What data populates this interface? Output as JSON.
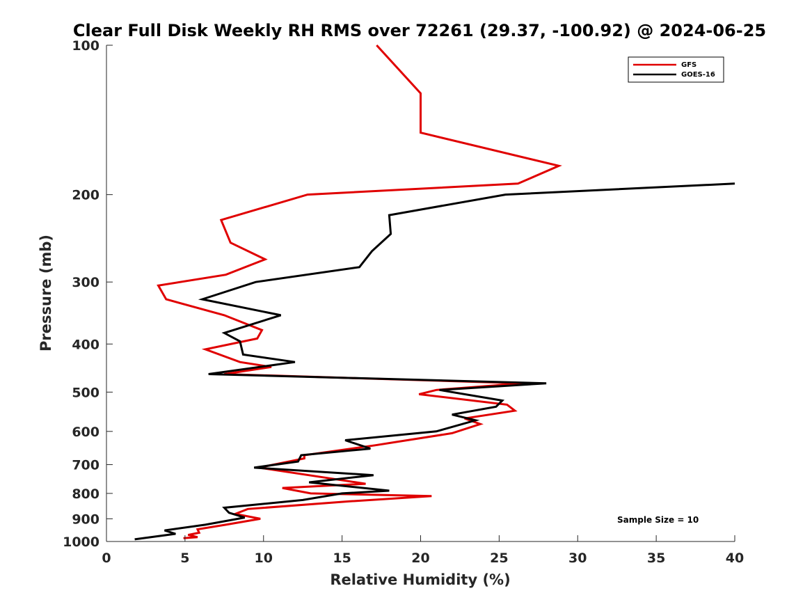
{
  "chart_data": {
    "type": "line",
    "title": "Clear Full Disk Weekly RH RMS over 72261 (29.37, -100.92) @ 2024-06-25",
    "xlabel": "Relative Humidity (%)",
    "ylabel": "Pressure (mb)",
    "xlim": [
      0,
      40
    ],
    "ylim": [
      100,
      1000
    ],
    "y_scale": "log",
    "y_reversed": true,
    "x_ticks": [
      0,
      5,
      10,
      15,
      20,
      25,
      30,
      35,
      40
    ],
    "y_ticks": [
      100,
      200,
      300,
      400,
      500,
      600,
      700,
      800,
      900,
      1000
    ],
    "grid": false,
    "legend_position": "top-right",
    "annotation": "Sample Size = 10",
    "series": [
      {
        "name": "GFS",
        "color": "#e00000",
        "points": [
          [
            17.2,
            100
          ],
          [
            20.0,
            125
          ],
          [
            20.0,
            150
          ],
          [
            28.8,
            175
          ],
          [
            26.2,
            190
          ],
          [
            12.8,
            200
          ],
          [
            7.3,
            225
          ],
          [
            7.9,
            250
          ],
          [
            10.1,
            270
          ],
          [
            7.6,
            290
          ],
          [
            3.3,
            305
          ],
          [
            3.8,
            325
          ],
          [
            7.5,
            350
          ],
          [
            9.9,
            375
          ],
          [
            9.6,
            390
          ],
          [
            6.3,
            410
          ],
          [
            8.5,
            435
          ],
          [
            10.5,
            445
          ],
          [
            7.5,
            460
          ],
          [
            26.5,
            480
          ],
          [
            21.0,
            495
          ],
          [
            19.9,
            505
          ],
          [
            25.5,
            530
          ],
          [
            26.0,
            545
          ],
          [
            22.8,
            565
          ],
          [
            23.8,
            580
          ],
          [
            22.0,
            605
          ],
          [
            17.1,
            640
          ],
          [
            12.6,
            670
          ],
          [
            12.6,
            680
          ],
          [
            9.7,
            710
          ],
          [
            13.5,
            740
          ],
          [
            16.5,
            765
          ],
          [
            11.2,
            780
          ],
          [
            13.0,
            800
          ],
          [
            20.7,
            810
          ],
          [
            15.5,
            830
          ],
          [
            9.0,
            860
          ],
          [
            8.2,
            880
          ],
          [
            9.8,
            900
          ],
          [
            7.6,
            925
          ],
          [
            5.8,
            945
          ],
          [
            5.9,
            960
          ],
          [
            5.2,
            970
          ],
          [
            5.8,
            980
          ],
          [
            4.9,
            985
          ]
        ]
      },
      {
        "name": "GOES-16",
        "color": "#000000",
        "points": [
          [
            40.0,
            190
          ],
          [
            25.4,
            200
          ],
          [
            18.0,
            220
          ],
          [
            18.1,
            240
          ],
          [
            16.9,
            260
          ],
          [
            16.1,
            280
          ],
          [
            9.5,
            300
          ],
          [
            6.1,
            325
          ],
          [
            11.1,
            350
          ],
          [
            7.5,
            380
          ],
          [
            8.5,
            395
          ],
          [
            8.7,
            420
          ],
          [
            12.0,
            435
          ],
          [
            6.5,
            460
          ],
          [
            28.0,
            480
          ],
          [
            21.2,
            495
          ],
          [
            25.2,
            520
          ],
          [
            24.8,
            535
          ],
          [
            22.0,
            555
          ],
          [
            23.5,
            570
          ],
          [
            21.0,
            600
          ],
          [
            15.2,
            625
          ],
          [
            16.8,
            650
          ],
          [
            12.4,
            670
          ],
          [
            12.2,
            690
          ],
          [
            9.4,
            710
          ],
          [
            17.0,
            735
          ],
          [
            12.9,
            760
          ],
          [
            18.0,
            790
          ],
          [
            15.0,
            800
          ],
          [
            12.5,
            825
          ],
          [
            7.5,
            855
          ],
          [
            7.8,
            875
          ],
          [
            8.8,
            895
          ],
          [
            6.3,
            925
          ],
          [
            3.7,
            950
          ],
          [
            4.4,
            965
          ],
          [
            1.8,
            990
          ]
        ]
      }
    ]
  }
}
